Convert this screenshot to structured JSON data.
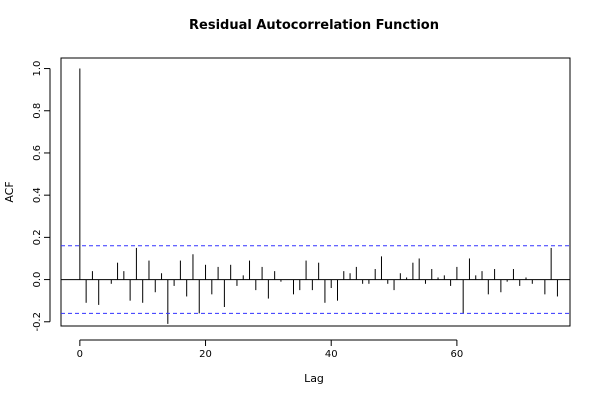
{
  "chart_data": {
    "type": "bar",
    "title": "Residual Autocorrelation Function",
    "xlabel": "Lag",
    "ylabel": "ACF",
    "xlim": [
      -3,
      78
    ],
    "ylim": [
      -0.22,
      1.05
    ],
    "x_ticks": [
      0,
      20,
      40,
      60
    ],
    "y_ticks": [
      -0.2,
      0.0,
      0.2,
      0.4,
      0.6,
      0.8,
      1.0
    ],
    "confidence_bounds": [
      0.16,
      -0.16
    ],
    "zero_line": 0,
    "grid": false,
    "legend": "none",
    "colors": {
      "bars": "#000000",
      "bounds": "#3333ff",
      "zero": "#000000",
      "frame": "#000000"
    },
    "lags": [
      0,
      1,
      2,
      3,
      4,
      5,
      6,
      7,
      8,
      9,
      10,
      11,
      12,
      13,
      14,
      15,
      16,
      17,
      18,
      19,
      20,
      21,
      22,
      23,
      24,
      25,
      26,
      27,
      28,
      29,
      30,
      31,
      32,
      33,
      34,
      35,
      36,
      37,
      38,
      39,
      40,
      41,
      42,
      43,
      44,
      45,
      46,
      47,
      48,
      49,
      50,
      51,
      52,
      53,
      54,
      55,
      56,
      57,
      58,
      59,
      60,
      61,
      62,
      63,
      64,
      65,
      66,
      67,
      68,
      69,
      70,
      71,
      72,
      73,
      74,
      75,
      76
    ],
    "values": [
      1.0,
      -0.11,
      0.04,
      -0.12,
      0.0,
      -0.02,
      0.08,
      0.04,
      -0.1,
      0.15,
      -0.11,
      0.09,
      -0.06,
      0.03,
      -0.21,
      -0.03,
      0.09,
      -0.08,
      0.12,
      -0.16,
      0.07,
      -0.07,
      0.06,
      -0.13,
      0.07,
      -0.03,
      0.02,
      0.09,
      -0.05,
      0.06,
      -0.09,
      0.04,
      -0.01,
      0.0,
      -0.07,
      -0.05,
      0.09,
      -0.05,
      0.08,
      -0.11,
      -0.04,
      -0.1,
      0.04,
      0.03,
      0.06,
      -0.02,
      -0.02,
      0.05,
      0.11,
      -0.02,
      -0.05,
      0.03,
      0.01,
      0.08,
      0.1,
      -0.02,
      0.05,
      0.01,
      0.02,
      -0.03,
      0.06,
      -0.16,
      0.1,
      0.02,
      0.04,
      -0.07,
      0.05,
      -0.06,
      -0.01,
      0.05,
      -0.03,
      0.01,
      -0.02,
      0.0,
      -0.07,
      0.15,
      -0.08
    ]
  }
}
